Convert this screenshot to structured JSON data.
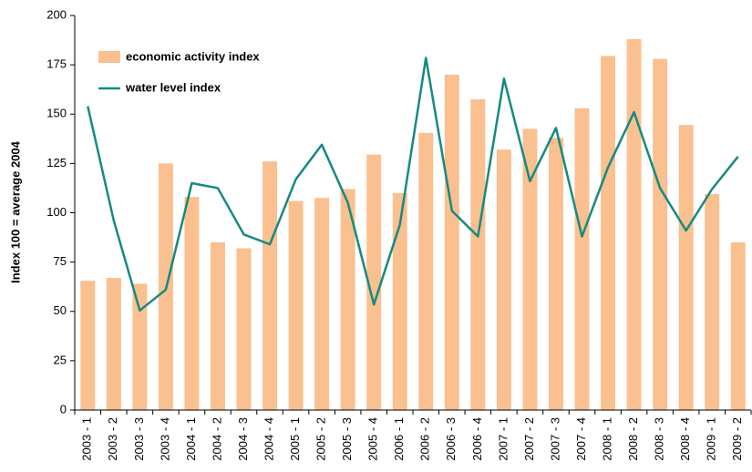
{
  "chart_data": {
    "type": "bar_line",
    "y_label": "Index  100 = average  2004",
    "categories": [
      "2003 - 1",
      "2003 - 2",
      "2003 - 3",
      "2003 - 4",
      "2004 - 1",
      "2004 - 2",
      "2004 - 3",
      "2004 - 4",
      "2005 - 1",
      "2005 - 2",
      "2005 - 3",
      "2005 - 4",
      "2006 - 1",
      "2006 - 2",
      "2006 - 3",
      "2006 - 4",
      "2007 - 1",
      "2007 - 2",
      "2007 - 3",
      "2007 - 4",
      "2008 - 1",
      "2008 - 2",
      "2008 - 3",
      "2008 - 4",
      "2009 - 1",
      "2009 - 2"
    ],
    "series": [
      {
        "name": "economic activity index",
        "type": "bar",
        "color": "#fac090",
        "values": [
          65.5,
          67,
          64,
          125,
          108,
          85,
          82,
          126,
          106,
          107.5,
          112,
          129.5,
          110,
          140.5,
          170,
          157.5,
          132,
          142.5,
          138,
          153,
          179.5,
          188,
          178,
          144.5,
          109.5,
          85
        ]
      },
      {
        "name": "water level index",
        "type": "line",
        "color": "#168a80",
        "values": [
          154,
          96,
          50.5,
          61,
          115,
          112.5,
          89,
          84,
          117,
          134.5,
          105,
          53.5,
          94,
          178.5,
          101,
          88,
          168,
          116,
          143,
          88,
          123,
          151,
          112.5,
          91,
          112,
          128.5
        ]
      }
    ],
    "ylim": [
      0,
      200
    ],
    "yticks": [
      0,
      25,
      50,
      75,
      100,
      125,
      150,
      175,
      200
    ]
  }
}
